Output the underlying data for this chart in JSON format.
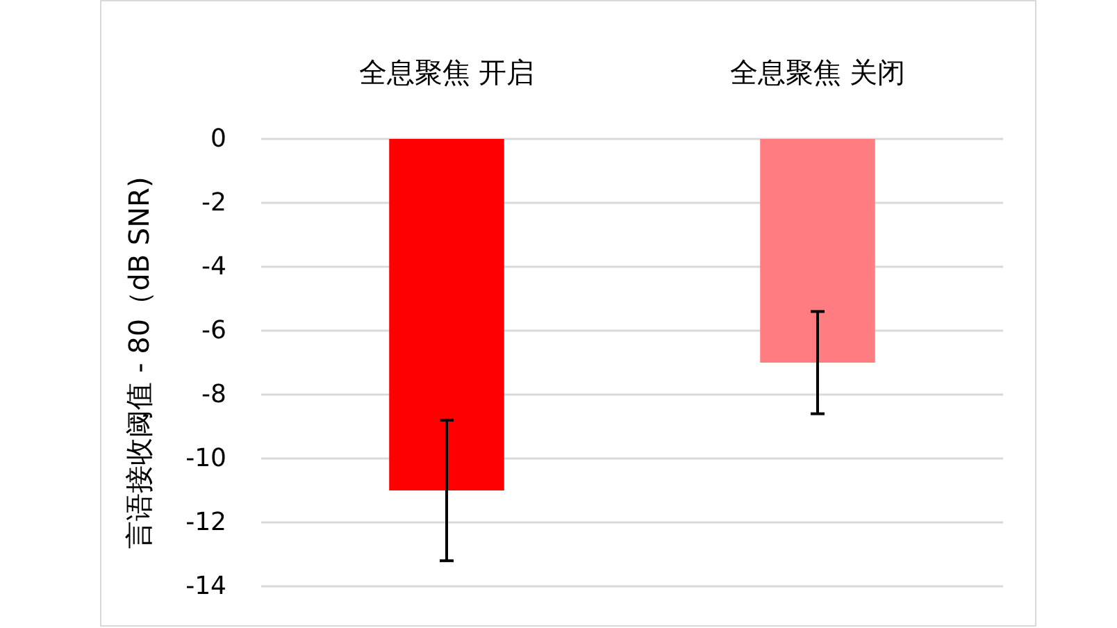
{
  "chart_data": {
    "type": "bar",
    "categories": [
      "全息聚焦 开启",
      "全息聚焦 关闭"
    ],
    "values": [
      -11,
      -7
    ],
    "colors": [
      "#ff0000",
      "#ff7c80"
    ],
    "errors": [
      2.2,
      1.6
    ],
    "ylabel": "言语接收阈值 - 80（dB SNR)",
    "ylim": [
      -14,
      0
    ],
    "yticks": [
      0,
      -2,
      -4,
      -6,
      -8,
      -10,
      -12,
      -14
    ],
    "grid": "y"
  }
}
